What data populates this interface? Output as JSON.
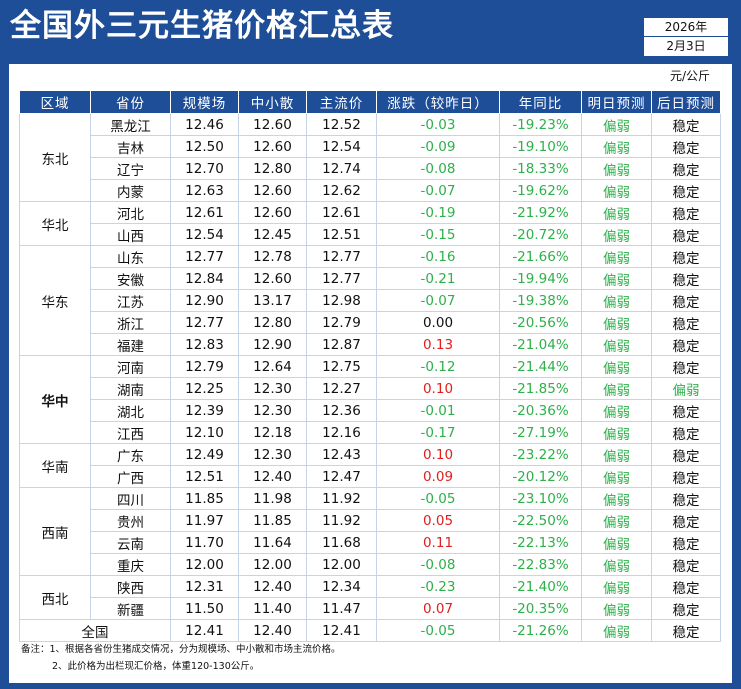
{
  "header": {
    "title": "全国外三元生猪价格汇总表",
    "year": "2026年",
    "date": "2月3日",
    "unit": "元/公斤"
  },
  "columns": [
    "区域",
    "省份",
    "规模场",
    "中小散",
    "主流价",
    "涨跌（较昨日）",
    "年同比",
    "明日预测",
    "后日预测"
  ],
  "regions": [
    {
      "name": "东北",
      "span": 4
    },
    {
      "name": "华北",
      "span": 2
    },
    {
      "name": "华东",
      "span": 5
    },
    {
      "name": "华中",
      "span": 4,
      "bold": true
    },
    {
      "name": "华南",
      "span": 2
    },
    {
      "name": "西南",
      "span": 4
    },
    {
      "name": "西北",
      "span": 2
    }
  ],
  "rows": [
    {
      "province": "黑龙江",
      "large": "12.46",
      "small": "12.60",
      "main": "12.52",
      "change": "-0.03",
      "yoy": "-19.23%",
      "tomorrow": "偏弱",
      "after": "稳定"
    },
    {
      "province": "吉林",
      "large": "12.50",
      "small": "12.60",
      "main": "12.54",
      "change": "-0.09",
      "yoy": "-19.10%",
      "tomorrow": "偏弱",
      "after": "稳定"
    },
    {
      "province": "辽宁",
      "large": "12.70",
      "small": "12.80",
      "main": "12.74",
      "change": "-0.08",
      "yoy": "-18.33%",
      "tomorrow": "偏弱",
      "after": "稳定"
    },
    {
      "province": "内蒙",
      "large": "12.63",
      "small": "12.60",
      "main": "12.62",
      "change": "-0.07",
      "yoy": "-19.62%",
      "tomorrow": "偏弱",
      "after": "稳定"
    },
    {
      "province": "河北",
      "large": "12.61",
      "small": "12.60",
      "main": "12.61",
      "change": "-0.19",
      "yoy": "-21.92%",
      "tomorrow": "偏弱",
      "after": "稳定"
    },
    {
      "province": "山西",
      "large": "12.54",
      "small": "12.45",
      "main": "12.51",
      "change": "-0.15",
      "yoy": "-20.72%",
      "tomorrow": "偏弱",
      "after": "稳定"
    },
    {
      "province": "山东",
      "large": "12.77",
      "small": "12.78",
      "main": "12.77",
      "change": "-0.16",
      "yoy": "-21.66%",
      "tomorrow": "偏弱",
      "after": "稳定"
    },
    {
      "province": "安徽",
      "large": "12.84",
      "small": "12.60",
      "main": "12.77",
      "change": "-0.21",
      "yoy": "-19.94%",
      "tomorrow": "偏弱",
      "after": "稳定"
    },
    {
      "province": "江苏",
      "large": "12.90",
      "small": "13.17",
      "main": "12.98",
      "change": "-0.07",
      "yoy": "-19.38%",
      "tomorrow": "偏弱",
      "after": "稳定"
    },
    {
      "province": "浙江",
      "large": "12.77",
      "small": "12.80",
      "main": "12.79",
      "change": "0.00",
      "yoy": "-20.56%",
      "tomorrow": "偏弱",
      "after": "稳定"
    },
    {
      "province": "福建",
      "large": "12.83",
      "small": "12.90",
      "main": "12.87",
      "change": "0.13",
      "yoy": "-21.04%",
      "tomorrow": "偏弱",
      "after": "稳定"
    },
    {
      "province": "河南",
      "large": "12.79",
      "small": "12.64",
      "main": "12.75",
      "change": "-0.12",
      "yoy": "-21.44%",
      "tomorrow": "偏弱",
      "after": "稳定"
    },
    {
      "province": "湖南",
      "large": "12.25",
      "small": "12.30",
      "main": "12.27",
      "change": "0.10",
      "yoy": "-21.85%",
      "tomorrow": "偏弱",
      "after": "偏弱"
    },
    {
      "province": "湖北",
      "large": "12.39",
      "small": "12.30",
      "main": "12.36",
      "change": "-0.01",
      "yoy": "-20.36%",
      "tomorrow": "偏弱",
      "after": "稳定"
    },
    {
      "province": "江西",
      "large": "12.10",
      "small": "12.18",
      "main": "12.16",
      "change": "-0.17",
      "yoy": "-27.19%",
      "tomorrow": "偏弱",
      "after": "稳定"
    },
    {
      "province": "广东",
      "large": "12.49",
      "small": "12.30",
      "main": "12.43",
      "change": "0.10",
      "yoy": "-23.22%",
      "tomorrow": "偏弱",
      "after": "稳定"
    },
    {
      "province": "广西",
      "large": "12.51",
      "small": "12.40",
      "main": "12.47",
      "change": "0.09",
      "yoy": "-20.12%",
      "tomorrow": "偏弱",
      "after": "稳定"
    },
    {
      "province": "四川",
      "large": "11.85",
      "small": "11.98",
      "main": "11.92",
      "change": "-0.05",
      "yoy": "-23.10%",
      "tomorrow": "偏弱",
      "after": "稳定"
    },
    {
      "province": "贵州",
      "large": "11.97",
      "small": "11.85",
      "main": "11.92",
      "change": "0.05",
      "yoy": "-22.50%",
      "tomorrow": "偏弱",
      "after": "稳定"
    },
    {
      "province": "云南",
      "large": "11.70",
      "small": "11.64",
      "main": "11.68",
      "change": "0.11",
      "yoy": "-22.13%",
      "tomorrow": "偏弱",
      "after": "稳定"
    },
    {
      "province": "重庆",
      "large": "12.00",
      "small": "12.00",
      "main": "12.00",
      "change": "-0.08",
      "yoy": "-22.83%",
      "tomorrow": "偏弱",
      "after": "稳定"
    },
    {
      "province": "陕西",
      "large": "12.31",
      "small": "12.40",
      "main": "12.34",
      "change": "-0.23",
      "yoy": "-21.40%",
      "tomorrow": "偏弱",
      "after": "稳定"
    },
    {
      "province": "新疆",
      "large": "11.50",
      "small": "11.40",
      "main": "11.47",
      "change": "0.07",
      "yoy": "-20.35%",
      "tomorrow": "偏弱",
      "after": "稳定"
    }
  ],
  "total": {
    "label": "全国",
    "large": "12.41",
    "small": "12.40",
    "main": "12.41",
    "change": "-0.05",
    "yoy": "-21.26%",
    "tomorrow": "偏弱",
    "after": "稳定"
  },
  "notes": {
    "line1": "备注：1、根据各省份生猪成交情况，分为规模场、中小散和市场主流价格。",
    "line2": "2、此价格为出栏现汇价格，体重120-130公斤。"
  },
  "colors": {
    "brand_blue": "#1f4e99",
    "down_green": "#2eb04a",
    "up_red": "#e02020"
  }
}
